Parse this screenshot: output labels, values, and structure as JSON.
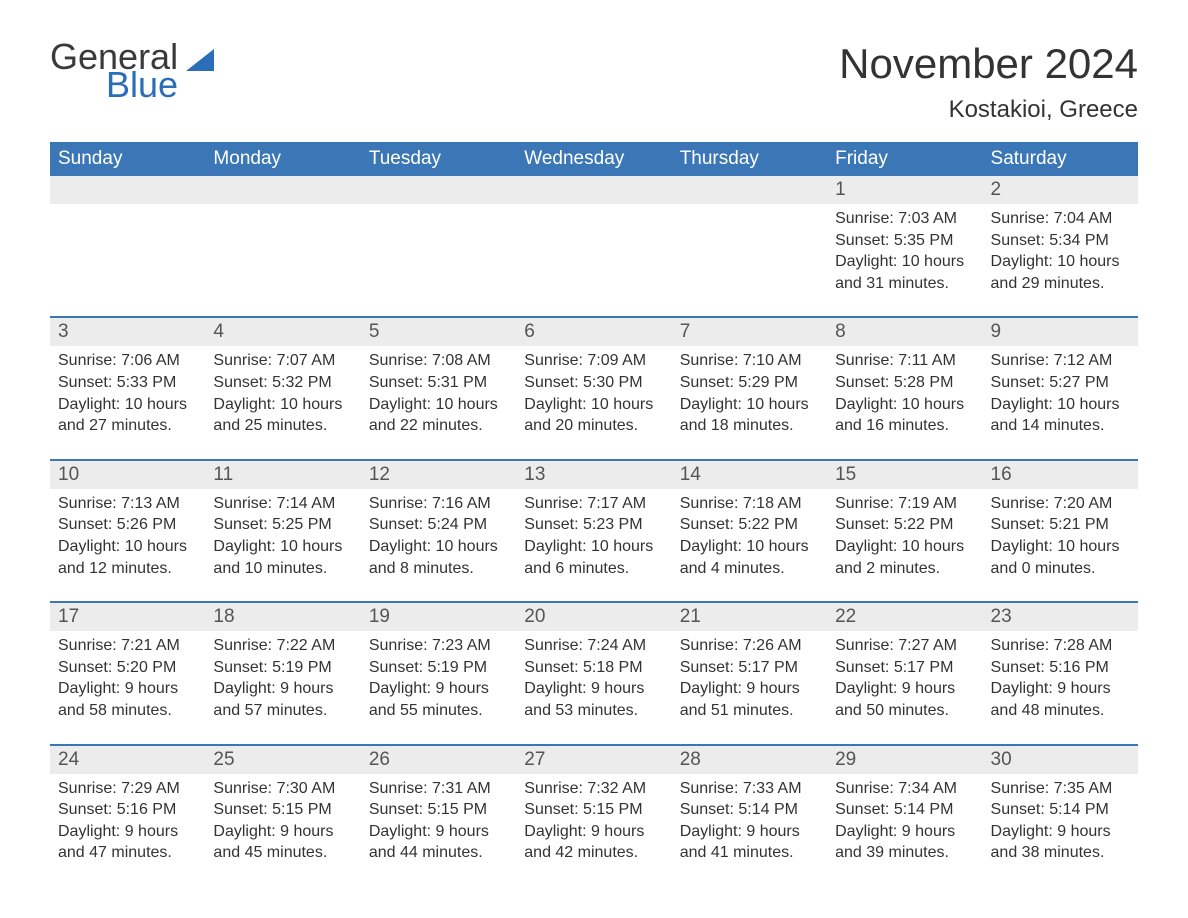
{
  "logo": {
    "text1": "General",
    "text2": "Blue"
  },
  "title": "November 2024",
  "location": "Kostakioi, Greece",
  "colors": {
    "header_bg": "#3b77b6",
    "header_text": "#ffffff",
    "week_border": "#3b77b6",
    "daynum_bg": "#ececec",
    "body_text": "#333333",
    "logo_blue": "#2a6db8",
    "logo_gray": "#3a3a3a",
    "page_bg": "#ffffff"
  },
  "fonts": {
    "title_size": 42,
    "location_size": 24,
    "dayname_size": 19,
    "daynum_size": 19,
    "body_size": 16,
    "logo_size": 36
  },
  "daynames": [
    "Sunday",
    "Monday",
    "Tuesday",
    "Wednesday",
    "Thursday",
    "Friday",
    "Saturday"
  ],
  "weeks": [
    [
      {
        "n": "",
        "sr": "",
        "ss": "",
        "dl": ""
      },
      {
        "n": "",
        "sr": "",
        "ss": "",
        "dl": ""
      },
      {
        "n": "",
        "sr": "",
        "ss": "",
        "dl": ""
      },
      {
        "n": "",
        "sr": "",
        "ss": "",
        "dl": ""
      },
      {
        "n": "",
        "sr": "",
        "ss": "",
        "dl": ""
      },
      {
        "n": "1",
        "sr": "Sunrise: 7:03 AM",
        "ss": "Sunset: 5:35 PM",
        "dl": "Daylight: 10 hours and 31 minutes."
      },
      {
        "n": "2",
        "sr": "Sunrise: 7:04 AM",
        "ss": "Sunset: 5:34 PM",
        "dl": "Daylight: 10 hours and 29 minutes."
      }
    ],
    [
      {
        "n": "3",
        "sr": "Sunrise: 7:06 AM",
        "ss": "Sunset: 5:33 PM",
        "dl": "Daylight: 10 hours and 27 minutes."
      },
      {
        "n": "4",
        "sr": "Sunrise: 7:07 AM",
        "ss": "Sunset: 5:32 PM",
        "dl": "Daylight: 10 hours and 25 minutes."
      },
      {
        "n": "5",
        "sr": "Sunrise: 7:08 AM",
        "ss": "Sunset: 5:31 PM",
        "dl": "Daylight: 10 hours and 22 minutes."
      },
      {
        "n": "6",
        "sr": "Sunrise: 7:09 AM",
        "ss": "Sunset: 5:30 PM",
        "dl": "Daylight: 10 hours and 20 minutes."
      },
      {
        "n": "7",
        "sr": "Sunrise: 7:10 AM",
        "ss": "Sunset: 5:29 PM",
        "dl": "Daylight: 10 hours and 18 minutes."
      },
      {
        "n": "8",
        "sr": "Sunrise: 7:11 AM",
        "ss": "Sunset: 5:28 PM",
        "dl": "Daylight: 10 hours and 16 minutes."
      },
      {
        "n": "9",
        "sr": "Sunrise: 7:12 AM",
        "ss": "Sunset: 5:27 PM",
        "dl": "Daylight: 10 hours and 14 minutes."
      }
    ],
    [
      {
        "n": "10",
        "sr": "Sunrise: 7:13 AM",
        "ss": "Sunset: 5:26 PM",
        "dl": "Daylight: 10 hours and 12 minutes."
      },
      {
        "n": "11",
        "sr": "Sunrise: 7:14 AM",
        "ss": "Sunset: 5:25 PM",
        "dl": "Daylight: 10 hours and 10 minutes."
      },
      {
        "n": "12",
        "sr": "Sunrise: 7:16 AM",
        "ss": "Sunset: 5:24 PM",
        "dl": "Daylight: 10 hours and 8 minutes."
      },
      {
        "n": "13",
        "sr": "Sunrise: 7:17 AM",
        "ss": "Sunset: 5:23 PM",
        "dl": "Daylight: 10 hours and 6 minutes."
      },
      {
        "n": "14",
        "sr": "Sunrise: 7:18 AM",
        "ss": "Sunset: 5:22 PM",
        "dl": "Daylight: 10 hours and 4 minutes."
      },
      {
        "n": "15",
        "sr": "Sunrise: 7:19 AM",
        "ss": "Sunset: 5:22 PM",
        "dl": "Daylight: 10 hours and 2 minutes."
      },
      {
        "n": "16",
        "sr": "Sunrise: 7:20 AM",
        "ss": "Sunset: 5:21 PM",
        "dl": "Daylight: 10 hours and 0 minutes."
      }
    ],
    [
      {
        "n": "17",
        "sr": "Sunrise: 7:21 AM",
        "ss": "Sunset: 5:20 PM",
        "dl": "Daylight: 9 hours and 58 minutes."
      },
      {
        "n": "18",
        "sr": "Sunrise: 7:22 AM",
        "ss": "Sunset: 5:19 PM",
        "dl": "Daylight: 9 hours and 57 minutes."
      },
      {
        "n": "19",
        "sr": "Sunrise: 7:23 AM",
        "ss": "Sunset: 5:19 PM",
        "dl": "Daylight: 9 hours and 55 minutes."
      },
      {
        "n": "20",
        "sr": "Sunrise: 7:24 AM",
        "ss": "Sunset: 5:18 PM",
        "dl": "Daylight: 9 hours and 53 minutes."
      },
      {
        "n": "21",
        "sr": "Sunrise: 7:26 AM",
        "ss": "Sunset: 5:17 PM",
        "dl": "Daylight: 9 hours and 51 minutes."
      },
      {
        "n": "22",
        "sr": "Sunrise: 7:27 AM",
        "ss": "Sunset: 5:17 PM",
        "dl": "Daylight: 9 hours and 50 minutes."
      },
      {
        "n": "23",
        "sr": "Sunrise: 7:28 AM",
        "ss": "Sunset: 5:16 PM",
        "dl": "Daylight: 9 hours and 48 minutes."
      }
    ],
    [
      {
        "n": "24",
        "sr": "Sunrise: 7:29 AM",
        "ss": "Sunset: 5:16 PM",
        "dl": "Daylight: 9 hours and 47 minutes."
      },
      {
        "n": "25",
        "sr": "Sunrise: 7:30 AM",
        "ss": "Sunset: 5:15 PM",
        "dl": "Daylight: 9 hours and 45 minutes."
      },
      {
        "n": "26",
        "sr": "Sunrise: 7:31 AM",
        "ss": "Sunset: 5:15 PM",
        "dl": "Daylight: 9 hours and 44 minutes."
      },
      {
        "n": "27",
        "sr": "Sunrise: 7:32 AM",
        "ss": "Sunset: 5:15 PM",
        "dl": "Daylight: 9 hours and 42 minutes."
      },
      {
        "n": "28",
        "sr": "Sunrise: 7:33 AM",
        "ss": "Sunset: 5:14 PM",
        "dl": "Daylight: 9 hours and 41 minutes."
      },
      {
        "n": "29",
        "sr": "Sunrise: 7:34 AM",
        "ss": "Sunset: 5:14 PM",
        "dl": "Daylight: 9 hours and 39 minutes."
      },
      {
        "n": "30",
        "sr": "Sunrise: 7:35 AM",
        "ss": "Sunset: 5:14 PM",
        "dl": "Daylight: 9 hours and 38 minutes."
      }
    ]
  ]
}
